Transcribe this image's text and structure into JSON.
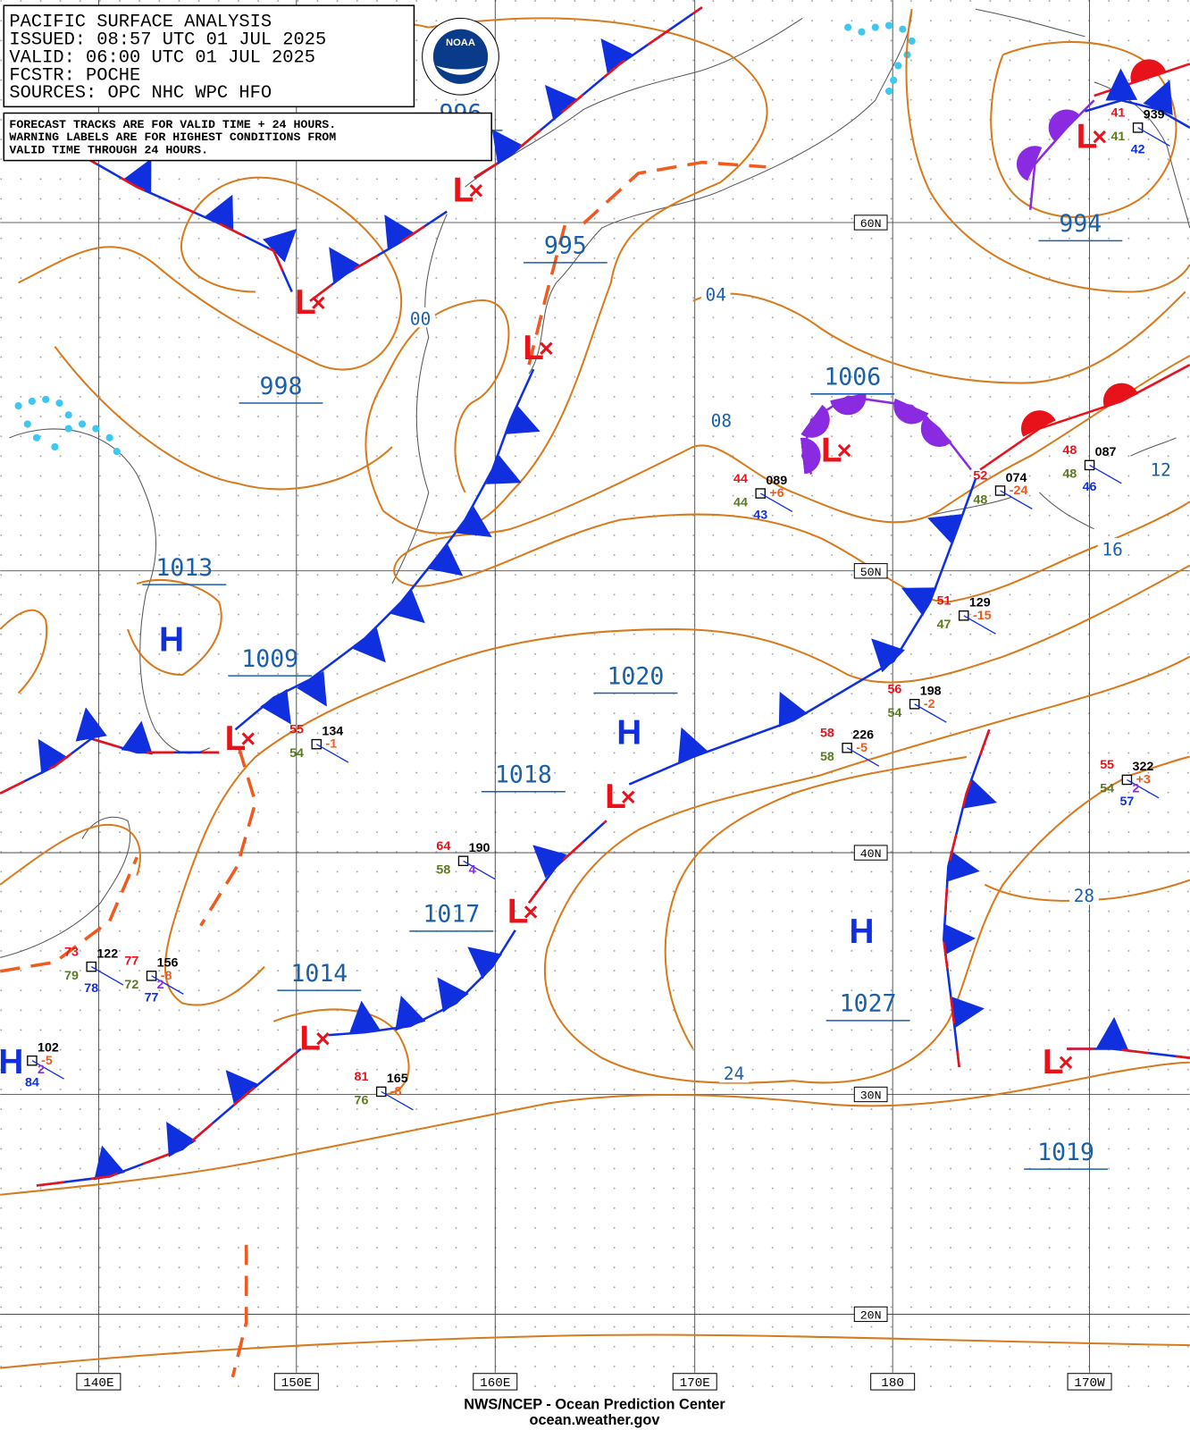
{
  "header": {
    "lines": [
      "PACIFIC SURFACE ANALYSIS",
      "ISSUED: 08:57 UTC 01 JUL 2025",
      "VALID:  06:00 UTC 01 JUL 2025",
      "FCSTR:  POCHE",
      "SOURCES: OPC NHC WPC HFO"
    ]
  },
  "note": {
    "lines": [
      "FORECAST TRACKS ARE FOR VALID TIME + 24 HOURS.",
      "WARNING LABELS ARE FOR HIGHEST CONDITIONS FROM",
      "VALID TIME THROUGH 24 HOURS."
    ]
  },
  "logo": "NOAA",
  "pressure_labels": [
    "996",
    "995",
    "998",
    "1006",
    "994",
    "1013",
    "1009",
    "1020",
    "1018",
    "1017",
    "1014",
    "1027",
    "1019"
  ],
  "isobar_labels": [
    "00",
    "04",
    "08",
    "12",
    "16",
    "24",
    "28"
  ],
  "centers": [
    "L",
    "L",
    "L",
    "L",
    "L",
    "L",
    "L",
    "L",
    "L",
    "L",
    "H",
    "H",
    "H",
    "H"
  ],
  "latitudes": [
    "60N",
    "50N",
    "40N",
    "30N",
    "20N"
  ],
  "longitudes": [
    "140E",
    "150E",
    "160E",
    "170E",
    "180",
    "170W"
  ],
  "stations": [
    {
      "temp": "41",
      "pressure": "939",
      "dew": "41",
      "wave": "42"
    },
    {
      "temp": "44",
      "pressure": "089",
      "dew": "44",
      "wave": "43",
      "change": "+6"
    },
    {
      "temp": "52",
      "pressure": "074",
      "dew": "48",
      "change": "-24"
    },
    {
      "temp": "48",
      "pressure": "087",
      "dew": "48",
      "wave": "46"
    },
    {
      "temp": "51",
      "pressure": "129",
      "dew": "47",
      "change": "-15"
    },
    {
      "temp": "56",
      "pressure": "198",
      "dew": "54",
      "change": "-2"
    },
    {
      "temp": "58",
      "pressure": "226",
      "dew": "58",
      "change": "-5"
    },
    {
      "temp": "55",
      "pressure": "134",
      "dew": "54",
      "change": "-1"
    },
    {
      "temp": "64",
      "pressure": "190",
      "dew": "58",
      "vis": "4"
    },
    {
      "temp": "55",
      "pressure": "322",
      "dew": "54",
      "vis": "2",
      "wave": "57",
      "change": "+3"
    },
    {
      "temp": "73",
      "pressure": "122",
      "dew": "79",
      "wave": "78"
    },
    {
      "temp": "77",
      "pressure": "156",
      "dew": "72",
      "vis": "2",
      "wave": "77",
      "change": "-8"
    },
    {
      "pressure": "102",
      "vis": "2",
      "wave": "84",
      "change": "-5"
    },
    {
      "temp": "81",
      "pressure": "165",
      "dew": "76",
      "change": "-8"
    }
  ],
  "footer": {
    "lines": [
      "NWS/NCEP - Ocean Prediction Center",
      "ocean.weather.gov"
    ]
  }
}
